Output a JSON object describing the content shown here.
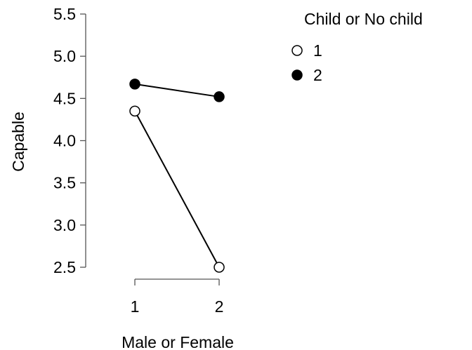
{
  "chart_data": {
    "type": "line",
    "title": "",
    "xlabel": "Male or Female",
    "ylabel": "Capable",
    "categories": [
      "1",
      "2"
    ],
    "ylim": [
      2.5,
      5.5
    ],
    "yticks": [
      "2.5",
      "3.0",
      "3.5",
      "4.0",
      "4.5",
      "5.0",
      "5.5"
    ],
    "grid": false,
    "legend": {
      "title": "Child or No child",
      "placement": "top-right"
    },
    "series": [
      {
        "name": "1",
        "values": [
          4.35,
          2.5
        ],
        "marker": "open-circle",
        "color": "#000000"
      },
      {
        "name": "2",
        "values": [
          4.67,
          4.52
        ],
        "marker": "filled-circle",
        "color": "#000000"
      }
    ]
  }
}
